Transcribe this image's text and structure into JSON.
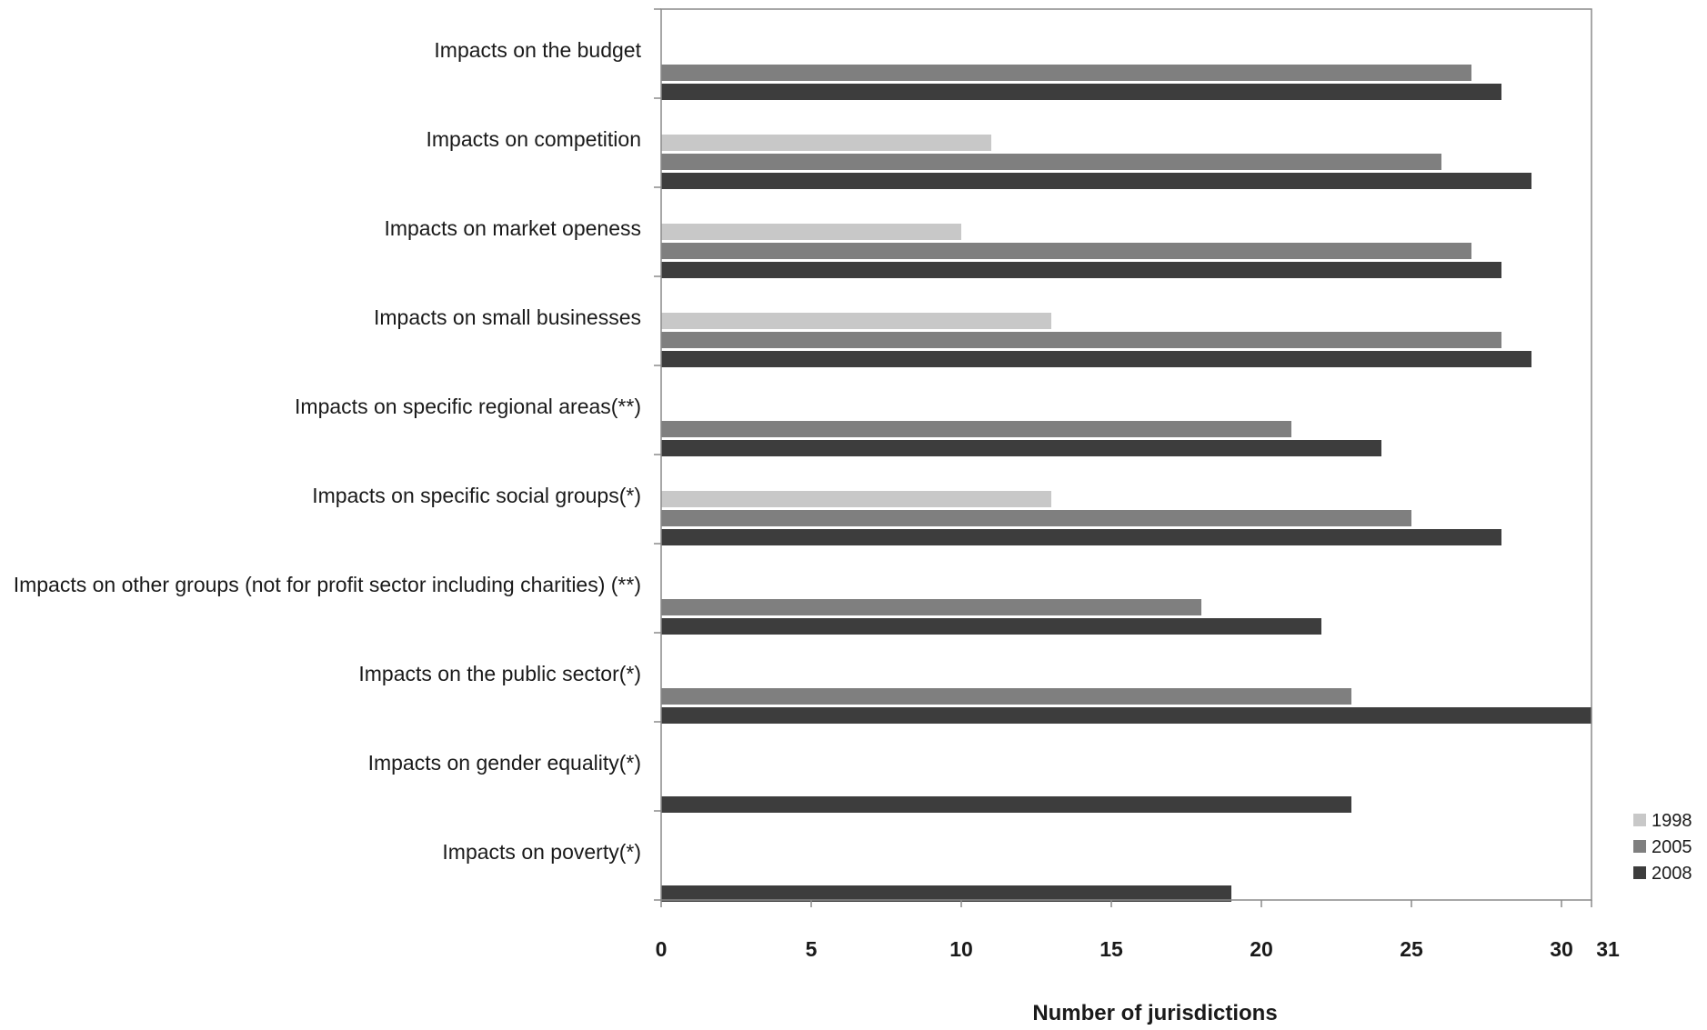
{
  "chart_data": {
    "type": "bar",
    "orientation": "horizontal",
    "categories": [
      "Impacts on the budget",
      "Impacts on competition",
      "Impacts on market openess",
      "Impacts on small businesses",
      "Impacts on specific regional areas(**)",
      "Impacts on specific social groups(*)",
      "Impacts on other groups (not for profit sector including charities) (**)",
      "Impacts on the public sector(*)",
      "Impacts on gender equality(*)",
      "Impacts on poverty(*)"
    ],
    "series": [
      {
        "name": "1998",
        "color": "#c8c8c8",
        "values": [
          null,
          11,
          10,
          13,
          null,
          13,
          null,
          null,
          null,
          null
        ]
      },
      {
        "name": "2005",
        "color": "#7f7f7f",
        "values": [
          27,
          26,
          27,
          28,
          21,
          25,
          18,
          23,
          null,
          null
        ]
      },
      {
        "name": "2008",
        "color": "#3d3d3d",
        "values": [
          28,
          29,
          28,
          29,
          24,
          28,
          22,
          31,
          23,
          19
        ]
      }
    ],
    "xlabel": "Number of jurisdictions",
    "xticks": [
      "0",
      "5",
      "10",
      "15",
      "20",
      "25",
      "30",
      "31"
    ],
    "xlim": [
      0,
      31
    ],
    "grid": false,
    "legend_position": "bottom-right"
  }
}
